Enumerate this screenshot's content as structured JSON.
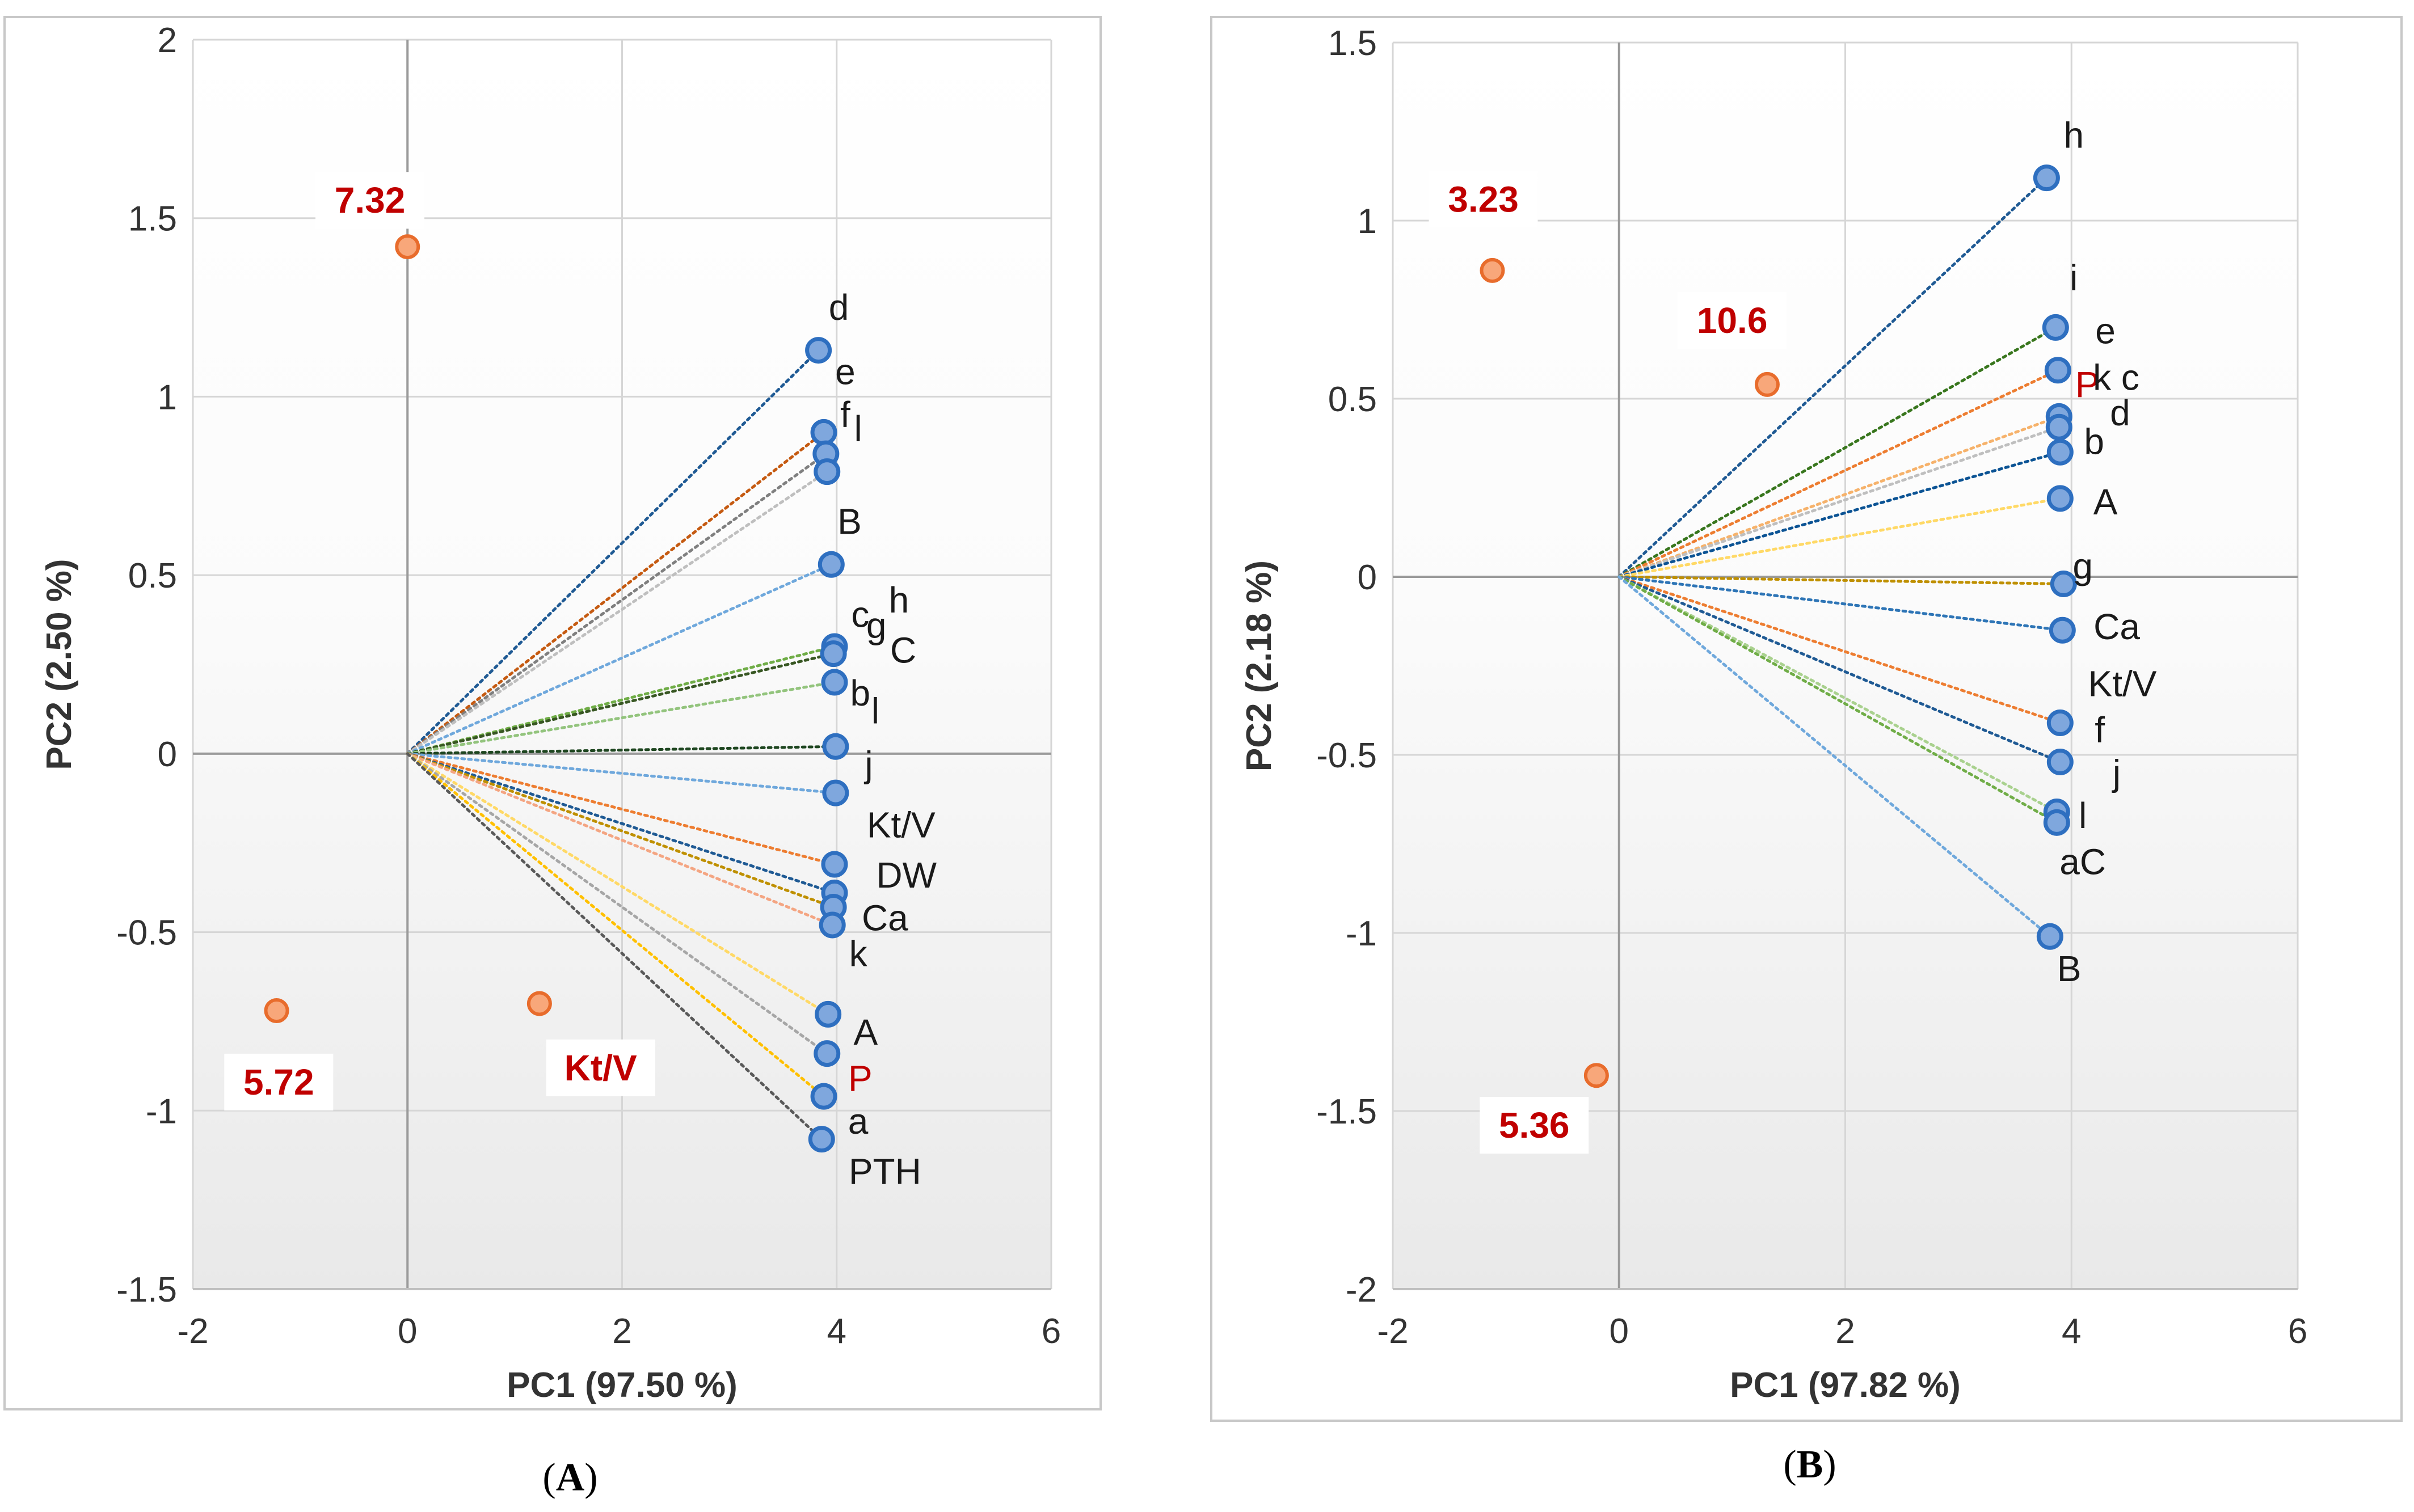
{
  "figure": {
    "panels": [
      "A",
      "B"
    ]
  },
  "chart_data": [
    {
      "type": "scatter",
      "panel_label": "A",
      "xlabel": "PC1 (97.50 %)",
      "ylabel": "PC2 (2.50 %)",
      "xlim": [
        -2,
        6
      ],
      "ylim": [
        -1.5,
        2
      ],
      "xticks": [
        -2,
        0,
        2,
        4,
        6
      ],
      "yticks": [
        -1.5,
        -1,
        -0.5,
        0,
        0.5,
        1,
        1.5,
        2
      ],
      "xtick_labels": [
        "-2",
        "0",
        "2",
        "4",
        "6"
      ],
      "ytick_labels": [
        "-1.5",
        "-1",
        "-0.5",
        "0",
        "0.5",
        "1",
        "1.5",
        "2"
      ],
      "grid": true,
      "loading_points": [
        {
          "x": 3.83,
          "y": 1.13,
          "color": "#1f5a94"
        },
        {
          "x": 3.88,
          "y": 0.9,
          "color": "#c55a11"
        },
        {
          "x": 3.9,
          "y": 0.84,
          "color": "#7f7f7f"
        },
        {
          "x": 3.91,
          "y": 0.79,
          "color": "#bfbfbf"
        },
        {
          "x": 3.95,
          "y": 0.53,
          "color": "#6fa8dc"
        },
        {
          "x": 3.98,
          "y": 0.3,
          "color": "#70ad47"
        },
        {
          "x": 3.97,
          "y": 0.28,
          "color": "#385723"
        },
        {
          "x": 3.98,
          "y": 0.2,
          "color": "#93c47d"
        },
        {
          "x": 3.99,
          "y": 0.02,
          "color": "#1e4620"
        },
        {
          "x": 3.99,
          "y": -0.11,
          "color": "#6fa8dc"
        },
        {
          "x": 3.98,
          "y": -0.31,
          "color": "#ed7d31"
        },
        {
          "x": 3.98,
          "y": -0.39,
          "color": "#1f5a94"
        },
        {
          "x": 3.97,
          "y": -0.43,
          "color": "#bf9000"
        },
        {
          "x": 3.96,
          "y": -0.48,
          "color": "#f4a582"
        },
        {
          "x": 3.92,
          "y": -0.73,
          "color": "#ffd966"
        },
        {
          "x": 3.91,
          "y": -0.84,
          "color": "#a6a6a6"
        },
        {
          "x": 3.88,
          "y": -0.96,
          "color": "#ffc000"
        },
        {
          "x": 3.86,
          "y": -1.08,
          "color": "#595959"
        }
      ],
      "loading_labels": [
        {
          "text": "d",
          "x": 4.02,
          "y": 1.25,
          "color": "#1a1a1a"
        },
        {
          "text": "e",
          "x": 4.08,
          "y": 1.07,
          "color": "#1a1a1a"
        },
        {
          "text": "f",
          "x": 4.08,
          "y": 0.95,
          "color": "#1a1a1a"
        },
        {
          "text": "l",
          "x": 4.2,
          "y": 0.91,
          "color": "#1a1a1a"
        },
        {
          "text": "B",
          "x": 4.12,
          "y": 0.65,
          "color": "#1a1a1a"
        },
        {
          "text": "c",
          "x": 4.22,
          "y": 0.39,
          "color": "#1a1a1a"
        },
        {
          "text": "g",
          "x": 4.37,
          "y": 0.36,
          "color": "#1a1a1a"
        },
        {
          "text": "h",
          "x": 4.58,
          "y": 0.43,
          "color": "#1a1a1a"
        },
        {
          "text": "C",
          "x": 4.62,
          "y": 0.29,
          "color": "#1a1a1a"
        },
        {
          "text": "b",
          "x": 4.22,
          "y": 0.17,
          "color": "#1a1a1a"
        },
        {
          "text": "l",
          "x": 4.36,
          "y": 0.12,
          "color": "#1a1a1a"
        },
        {
          "text": "j",
          "x": 4.3,
          "y": -0.03,
          "color": "#1a1a1a"
        },
        {
          "text": "Kt/V",
          "x": 4.6,
          "y": -0.2,
          "color": "#1a1a1a"
        },
        {
          "text": "DW",
          "x": 4.65,
          "y": -0.34,
          "color": "#1a1a1a"
        },
        {
          "text": "Ca",
          "x": 4.45,
          "y": -0.46,
          "color": "#1a1a1a"
        },
        {
          "text": "k",
          "x": 4.2,
          "y": -0.56,
          "color": "#1a1a1a"
        },
        {
          "text": "A",
          "x": 4.27,
          "y": -0.78,
          "color": "#1a1a1a"
        },
        {
          "text": "P",
          "x": 4.22,
          "y": -0.91,
          "color": "#c00000"
        },
        {
          "text": "a",
          "x": 4.2,
          "y": -1.03,
          "color": "#1a1a1a"
        },
        {
          "text": "PTH",
          "x": 4.45,
          "y": -1.17,
          "color": "#1a1a1a"
        }
      ],
      "score_points": [
        {
          "label": "7.32",
          "x": 0.0,
          "y": 1.42,
          "label_x": -0.35,
          "label_y": 1.55
        },
        {
          "label": "5.72",
          "x": -1.22,
          "y": -0.72,
          "label_x": -1.2,
          "label_y": -0.92
        },
        {
          "label": "Kt/V",
          "x": 1.23,
          "y": -0.7,
          "label_x": 1.8,
          "label_y": -0.88
        }
      ]
    },
    {
      "type": "scatter",
      "panel_label": "B",
      "xlabel": "PC1 (97.82 %)",
      "ylabel": "PC2 (2.18 %)",
      "xlim": [
        -2,
        6
      ],
      "ylim": [
        -2,
        1.5
      ],
      "xticks": [
        -2,
        0,
        2,
        4,
        6
      ],
      "yticks": [
        -2,
        -1.5,
        -1,
        -0.5,
        0,
        0.5,
        1,
        1.5
      ],
      "xtick_labels": [
        "-2",
        "0",
        "2",
        "4",
        "6"
      ],
      "ytick_labels": [
        "-2",
        "-1.5",
        "-1",
        "-0.5",
        "0",
        "0.5",
        "1",
        "1.5"
      ],
      "grid": true,
      "loading_points": [
        {
          "x": 3.78,
          "y": 1.12,
          "color": "#1f5a94"
        },
        {
          "x": 3.86,
          "y": 0.7,
          "color": "#38761d"
        },
        {
          "x": 3.88,
          "y": 0.58,
          "color": "#ed7d31"
        },
        {
          "x": 3.89,
          "y": 0.45,
          "color": "#f6b26b"
        },
        {
          "x": 3.89,
          "y": 0.42,
          "color": "#bfbfbf"
        },
        {
          "x": 3.9,
          "y": 0.35,
          "color": "#0b5394"
        },
        {
          "x": 3.9,
          "y": 0.22,
          "color": "#ffd966"
        },
        {
          "x": 3.93,
          "y": -0.02,
          "color": "#bf9000"
        },
        {
          "x": 3.92,
          "y": -0.15,
          "color": "#2e75b6"
        },
        {
          "x": 3.9,
          "y": -0.41,
          "color": "#ed7d31"
        },
        {
          "x": 3.9,
          "y": -0.52,
          "color": "#1f5a94"
        },
        {
          "x": 3.87,
          "y": -0.66,
          "color": "#a9d18e"
        },
        {
          "x": 3.87,
          "y": -0.69,
          "color": "#70ad47"
        },
        {
          "x": 3.81,
          "y": -1.01,
          "color": "#6fa8dc"
        }
      ],
      "loading_labels": [
        {
          "text": "h",
          "x": 4.02,
          "y": 1.24,
          "color": "#1a1a1a"
        },
        {
          "text": "i",
          "x": 4.02,
          "y": 0.84,
          "color": "#1a1a1a"
        },
        {
          "text": "e",
          "x": 4.3,
          "y": 0.69,
          "color": "#1a1a1a"
        },
        {
          "text": "P",
          "x": 4.14,
          "y": 0.54,
          "color": "#c00000"
        },
        {
          "text": "k",
          "x": 4.27,
          "y": 0.56,
          "color": "#1a1a1a"
        },
        {
          "text": "c",
          "x": 4.52,
          "y": 0.56,
          "color": "#1a1a1a"
        },
        {
          "text": "d",
          "x": 4.43,
          "y": 0.46,
          "color": "#1a1a1a"
        },
        {
          "text": "b",
          "x": 4.2,
          "y": 0.38,
          "color": "#1a1a1a"
        },
        {
          "text": "A",
          "x": 4.3,
          "y": 0.21,
          "color": "#1a1a1a"
        },
        {
          "text": "g",
          "x": 4.1,
          "y": 0.03,
          "color": "#1a1a1a"
        },
        {
          "text": "Ca",
          "x": 4.4,
          "y": -0.14,
          "color": "#1a1a1a"
        },
        {
          "text": "Kt/V",
          "x": 4.45,
          "y": -0.3,
          "color": "#1a1a1a"
        },
        {
          "text": "f",
          "x": 4.25,
          "y": -0.43,
          "color": "#1a1a1a"
        },
        {
          "text": "j",
          "x": 4.4,
          "y": -0.55,
          "color": "#1a1a1a"
        },
        {
          "text": "l",
          "x": 4.1,
          "y": -0.67,
          "color": "#1a1a1a"
        },
        {
          "text": "aC",
          "x": 4.1,
          "y": -0.8,
          "color": "#1a1a1a"
        },
        {
          "text": "B",
          "x": 3.98,
          "y": -1.1,
          "color": "#1a1a1a"
        }
      ],
      "score_points": [
        {
          "label": "3.23",
          "x": -1.12,
          "y": 0.86,
          "label_x": -1.2,
          "label_y": 1.06
        },
        {
          "label": "10.6",
          "x": 1.31,
          "y": 0.54,
          "label_x": 1.0,
          "label_y": 0.72
        },
        {
          "label": "5.36",
          "x": -0.2,
          "y": -1.4,
          "label_x": -0.75,
          "label_y": -1.54
        }
      ]
    }
  ]
}
